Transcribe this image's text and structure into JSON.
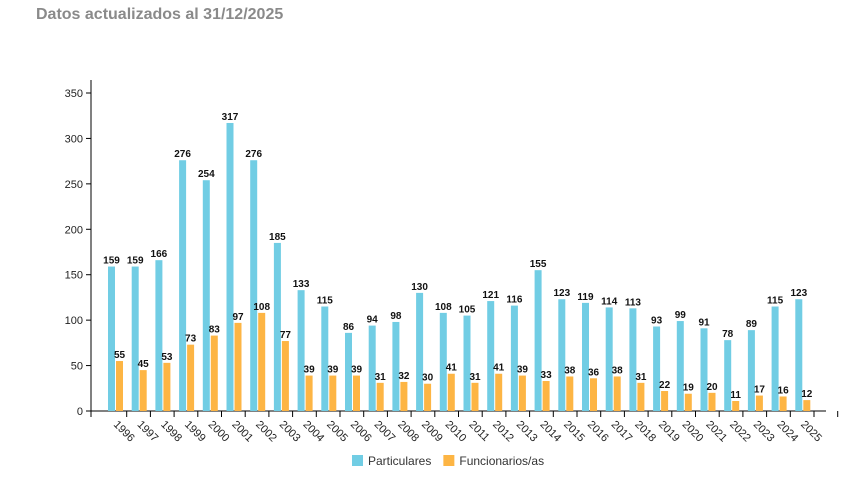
{
  "header": {
    "title": "Datos actualizados al 31/12/2025"
  },
  "chart_data": {
    "type": "bar",
    "title": "",
    "xlabel": "",
    "ylabel": "",
    "ylim": [
      0,
      350
    ],
    "yticks": [
      0,
      50,
      100,
      150,
      200,
      250,
      300,
      350
    ],
    "grid": false,
    "legend": "bottom",
    "categories": [
      "1996",
      "1997",
      "1998",
      "1999",
      "2000",
      "2001",
      "2002",
      "2003",
      "2004",
      "2005",
      "2006",
      "2007",
      "2008",
      "2009",
      "2010",
      "2011",
      "2012",
      "2013",
      "2014",
      "2015",
      "2016",
      "2017",
      "2018",
      "2019",
      "2020",
      "2021",
      "2022",
      "2023",
      "2024",
      "2025"
    ],
    "series": [
      {
        "name": "Particulares",
        "color": "#71cde4",
        "values": [
          159,
          159,
          166,
          276,
          254,
          317,
          276,
          185,
          133,
          115,
          86,
          94,
          98,
          130,
          108,
          105,
          121,
          116,
          155,
          123,
          119,
          114,
          113,
          93,
          99,
          91,
          78,
          89,
          115,
          123
        ]
      },
      {
        "name": "Funcionarios/as",
        "color": "#fdb544",
        "values": [
          55,
          45,
          53,
          73,
          83,
          97,
          108,
          77,
          39,
          39,
          39,
          31,
          32,
          30,
          41,
          31,
          41,
          39,
          33,
          38,
          36,
          38,
          31,
          22,
          19,
          20,
          11,
          17,
          16,
          12
        ]
      }
    ]
  }
}
